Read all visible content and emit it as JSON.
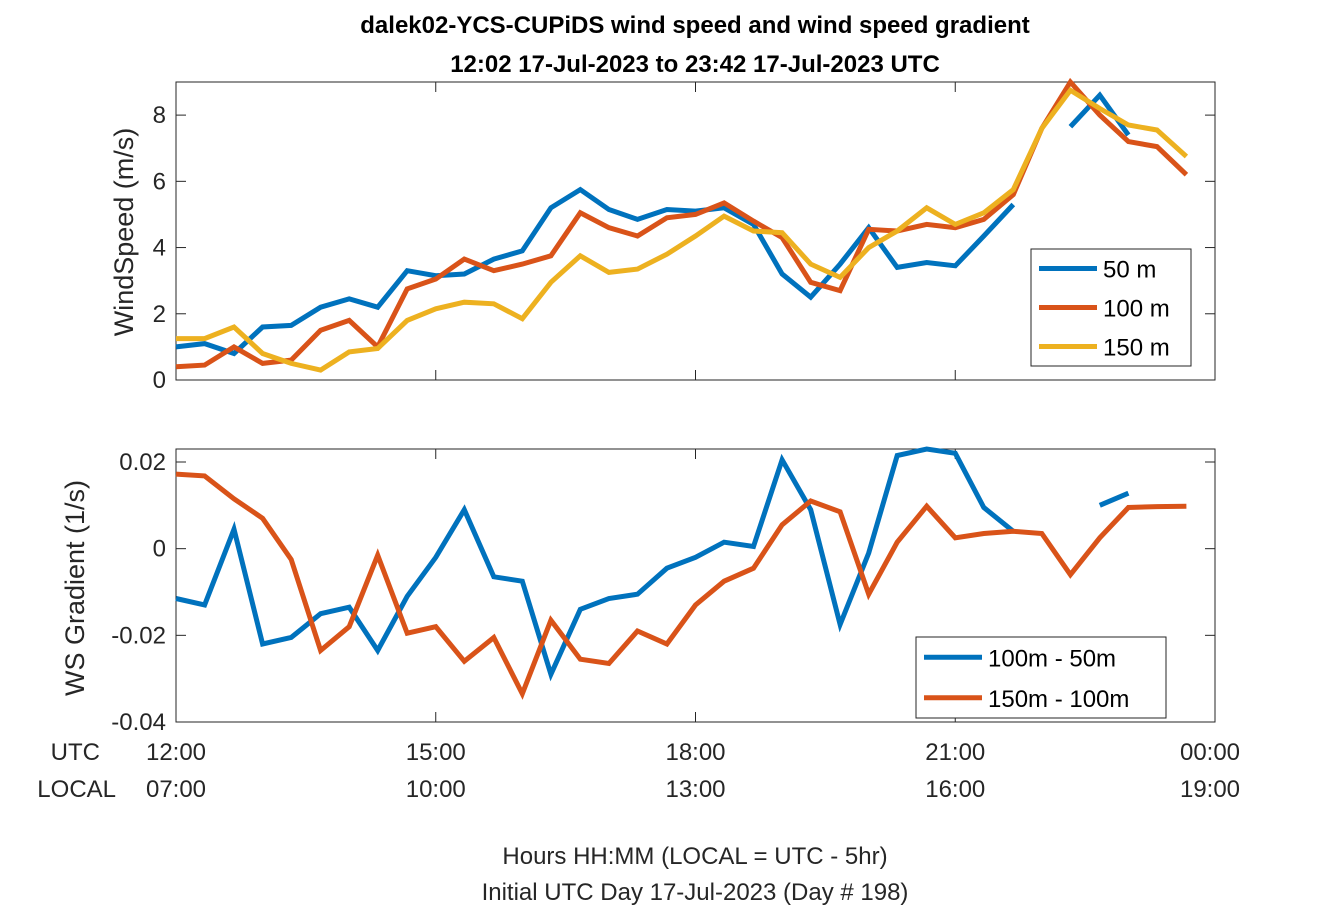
{
  "chart_data": [
    {
      "type": "line",
      "title": "dalek02-YCS-CUPiDS  wind speed and wind speed gradient",
      "subtitle": "12:02 17-Jul-2023 to 23:42 17-Jul-2023  UTC",
      "ylabel": "WindSpeed (m/s)",
      "xlim": [
        12.0,
        24.0
      ],
      "ylim": [
        0,
        9
      ],
      "yticks": [
        0,
        2,
        4,
        6,
        8
      ],
      "legend_position": "lower-right",
      "x": [
        12.0,
        12.33,
        12.67,
        13.0,
        13.33,
        13.67,
        14.0,
        14.33,
        14.67,
        15.0,
        15.33,
        15.67,
        16.0,
        16.33,
        16.67,
        17.0,
        17.33,
        17.67,
        18.0,
        18.33,
        18.67,
        19.0,
        19.33,
        19.67,
        20.0,
        20.33,
        20.67,
        21.0,
        21.33,
        21.67,
        22.0,
        22.33,
        22.67,
        23.0,
        23.33,
        23.67
      ],
      "series": [
        {
          "name": "50 m",
          "color": "#0072BD",
          "values": [
            1.0,
            1.1,
            0.8,
            1.6,
            1.65,
            2.2,
            2.45,
            2.2,
            3.3,
            3.15,
            3.2,
            3.65,
            3.9,
            5.2,
            5.75,
            5.15,
            4.85,
            5.15,
            5.1,
            5.2,
            4.7,
            3.2,
            2.5,
            3.5,
            4.6,
            3.4,
            3.55,
            3.45,
            4.35,
            5.3,
            null,
            7.65,
            8.6,
            7.4,
            null,
            null
          ]
        },
        {
          "name": "100 m",
          "color": "#D95319",
          "values": [
            0.4,
            0.45,
            1.0,
            0.5,
            0.6,
            1.5,
            1.8,
            1.0,
            2.75,
            3.05,
            3.65,
            3.3,
            3.5,
            3.75,
            5.05,
            4.6,
            4.35,
            4.9,
            5.0,
            5.35,
            4.8,
            4.3,
            2.95,
            2.7,
            4.55,
            4.5,
            4.7,
            4.6,
            4.85,
            5.6,
            7.6,
            9.0,
            8.0,
            7.2,
            7.05,
            6.2
          ]
        },
        {
          "name": "150 m",
          "color": "#EDB120",
          "values": [
            1.25,
            1.25,
            1.6,
            0.8,
            0.5,
            0.3,
            0.85,
            0.95,
            1.8,
            2.15,
            2.35,
            2.3,
            1.85,
            2.95,
            3.75,
            3.25,
            3.35,
            3.8,
            4.35,
            4.95,
            4.5,
            4.45,
            3.5,
            3.1,
            4.0,
            4.5,
            5.2,
            4.7,
            5.05,
            5.75,
            7.6,
            8.75,
            8.2,
            7.7,
            7.55,
            6.75
          ]
        }
      ]
    },
    {
      "type": "line",
      "ylabel": "WS Gradient (1/s)",
      "xlim": [
        12.0,
        24.0
      ],
      "ylim": [
        -0.04,
        0.023
      ],
      "yticks": [
        -0.04,
        -0.02,
        0,
        0.02
      ],
      "ytick_labels": [
        "-0.04",
        "-0.02",
        "0",
        "0.02"
      ],
      "legend_position": "lower-right",
      "x": [
        12.0,
        12.33,
        12.67,
        13.0,
        13.33,
        13.67,
        14.0,
        14.33,
        14.67,
        15.0,
        15.33,
        15.67,
        16.0,
        16.33,
        16.67,
        17.0,
        17.33,
        17.67,
        18.0,
        18.33,
        18.67,
        19.0,
        19.33,
        19.67,
        20.0,
        20.33,
        20.67,
        21.0,
        21.33,
        21.67,
        22.0,
        22.33,
        22.67,
        23.0,
        23.33,
        23.67
      ],
      "series": [
        {
          "name": "100m - 50m",
          "color": "#0072BD",
          "values": [
            -0.0115,
            -0.013,
            0.0045,
            -0.022,
            -0.0205,
            -0.015,
            -0.0135,
            -0.0235,
            -0.011,
            -0.002,
            0.009,
            -0.0065,
            -0.0075,
            -0.029,
            -0.014,
            -0.0115,
            -0.0105,
            -0.0045,
            -0.002,
            0.0015,
            0.0005,
            0.0205,
            0.009,
            -0.0175,
            -0.001,
            0.0215,
            0.023,
            0.022,
            0.0095,
            0.004,
            null,
            null,
            0.01,
            0.0128,
            null,
            null
          ]
        },
        {
          "name": "150m - 100m",
          "color": "#D95319",
          "values": [
            0.0172,
            0.0168,
            0.0115,
            0.007,
            -0.0025,
            -0.0235,
            -0.018,
            -0.0015,
            -0.0195,
            -0.018,
            -0.026,
            -0.0205,
            -0.0335,
            -0.0165,
            -0.0255,
            -0.0265,
            -0.019,
            -0.022,
            -0.013,
            -0.0075,
            -0.0045,
            0.0055,
            0.011,
            0.0085,
            -0.0105,
            0.0015,
            0.0098,
            0.0025,
            0.0035,
            0.004,
            0.0035,
            -0.006,
            0.0025,
            0.0095,
            0.0097,
            0.0098
          ]
        }
      ]
    }
  ],
  "x_axis": {
    "utc_row_label": "UTC",
    "local_row_label": "LOCAL",
    "tick_hours": [
      12,
      15,
      18,
      21,
      24
    ],
    "utc_labels": [
      "12:00",
      "15:00",
      "18:00",
      "21:00",
      "00:00"
    ],
    "local_labels": [
      "07:00",
      "10:00",
      "13:00",
      "16:00",
      "19:00"
    ]
  },
  "footer": {
    "line1": "Hours HH:MM  (LOCAL = UTC - 5hr)",
    "line2": "Initial UTC Day 17-Jul-2023 (Day # 198)"
  }
}
